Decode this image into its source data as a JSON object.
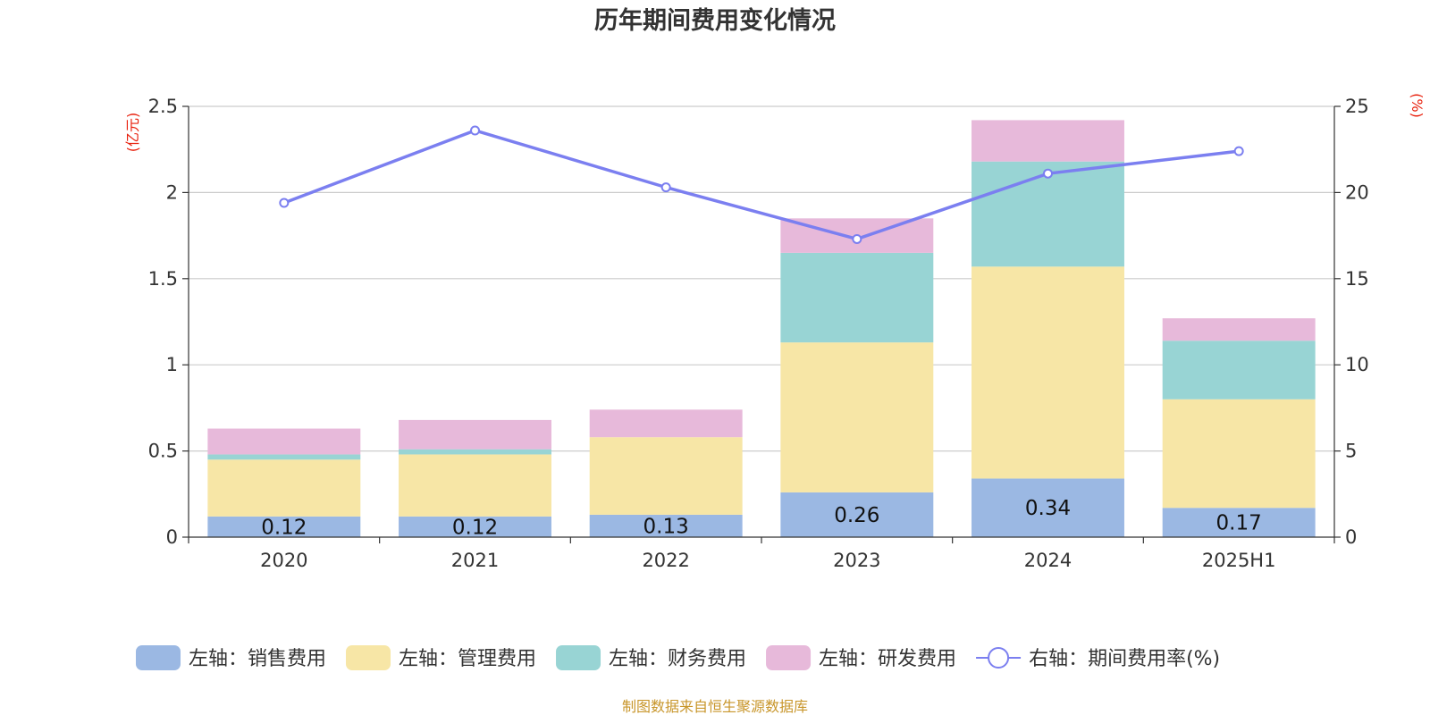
{
  "chart_data": {
    "type": "bar",
    "stacked": true,
    "title": "历年期间费用变化情况",
    "categories": [
      "2020",
      "2021",
      "2022",
      "2023",
      "2024",
      "2025H1"
    ],
    "left_axis": {
      "unit_label": "(亿元)",
      "ylim": [
        0,
        2.5
      ],
      "ticks": [
        "0",
        "0.5",
        "1",
        "1.5",
        "2",
        "2.5"
      ]
    },
    "right_axis": {
      "unit_label": "(%)",
      "ylim": [
        0,
        25
      ],
      "ticks": [
        "0",
        "5",
        "10",
        "15",
        "20",
        "25"
      ]
    },
    "series": [
      {
        "name": "左轴：销售费用",
        "axis": "left",
        "color": "#9bb8e3",
        "values": [
          0.12,
          0.12,
          0.13,
          0.26,
          0.34,
          0.17
        ],
        "labels": [
          "0.12",
          "0.12",
          "0.13",
          "0.26",
          "0.34",
          "0.17"
        ]
      },
      {
        "name": "左轴：管理费用",
        "axis": "left",
        "color": "#f7e6a6",
        "values": [
          0.33,
          0.36,
          0.45,
          0.87,
          1.23,
          0.63
        ]
      },
      {
        "name": "左轴：财务费用",
        "axis": "left",
        "color": "#98d4d4",
        "values": [
          0.03,
          0.03,
          0.0,
          0.52,
          0.61,
          0.34
        ]
      },
      {
        "name": "左轴：研发费用",
        "axis": "left",
        "color": "#e7b9da",
        "values": [
          0.15,
          0.17,
          0.16,
          0.2,
          0.24,
          0.13
        ]
      },
      {
        "name": "右轴：期间费用率(%)",
        "axis": "right",
        "type": "line",
        "color": "#7b7ff0",
        "values": [
          19.4,
          23.6,
          20.3,
          17.3,
          21.1,
          22.4
        ]
      }
    ],
    "grid": true,
    "legend_position": "bottom"
  },
  "source_note": "制图数据来自恒生聚源数据库"
}
